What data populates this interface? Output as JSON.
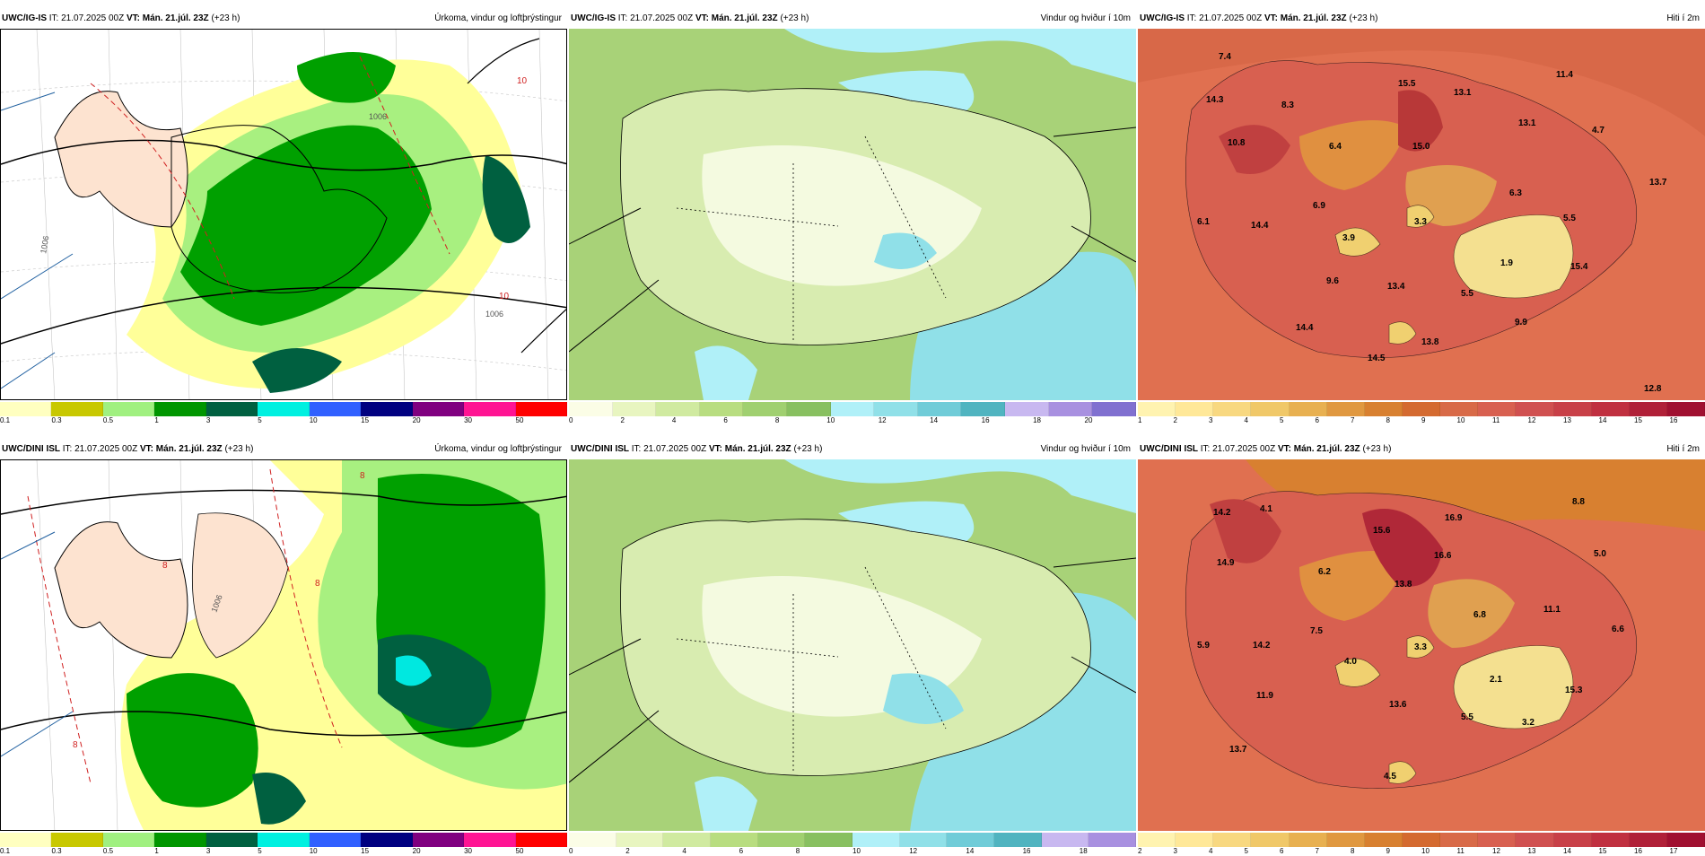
{
  "rows": [
    {
      "panels": [
        {
          "model": "UWC/IG-IS",
          "it_label": "IT:",
          "it_value": "21.07.2025 00Z",
          "vt_label": "VT:",
          "vt_value": "Mán. 21.júl. 23Z",
          "lead": "(+23 h)",
          "title": "Úrkoma, vindur og loftþrýstingur",
          "colorbar": [
            "#ffffc0",
            "#c8c800",
            "#a0f080",
            "#009600",
            "#006040",
            "#00f0e0",
            "#3060ff",
            "#000080",
            "#800080",
            "#ff1493",
            "#ff0000"
          ],
          "ticks": [
            "0.1",
            "0.3",
            "0.5",
            "1",
            "3",
            "5",
            "10",
            "15",
            "20",
            "30",
            "50"
          ],
          "labels": [
            {
              "text": "10"
            },
            {
              "text": "1006"
            },
            {
              "text": "1006"
            },
            {
              "text": "10"
            },
            {
              "text": "1006"
            }
          ]
        },
        {
          "model": "UWC/IG-IS",
          "it_label": "IT:",
          "it_value": "21.07.2025 00Z",
          "vt_label": "VT:",
          "vt_value": "Mán. 21.júl. 23Z",
          "lead": "(+23 h)",
          "title": "Vindur og hviður í 10m",
          "colorbar": [
            "#fbfde6",
            "#e8f5c0",
            "#d0eaa0",
            "#b8dd80",
            "#a0d070",
            "#88c060",
            "#b0f0f8",
            "#90e0e8",
            "#70ccd8",
            "#50b4c0",
            "#c8b8f0",
            "#a890e0",
            "#8070d0"
          ],
          "ticks": [
            "0",
            "2",
            "4",
            "6",
            "8",
            "10",
            "12",
            "14",
            "16",
            "18",
            "20"
          ],
          "labels": []
        },
        {
          "model": "UWC/IG-IS",
          "it_label": "IT:",
          "it_value": "21.07.2025 00Z",
          "vt_label": "VT:",
          "vt_value": "Mán. 21.júl. 23Z",
          "lead": "(+23 h)",
          "title": "Hiti í 2m",
          "colorbar": [
            "#fff3b0",
            "#ffe898",
            "#f8d880",
            "#f0c868",
            "#e8b050",
            "#e09840",
            "#d88030",
            "#d46a30",
            "#d86a48",
            "#d86050",
            "#d05050",
            "#c84048",
            "#c03040",
            "#b02038",
            "#a01030"
          ],
          "ticks": [
            "1",
            "2",
            "3",
            "4",
            "5",
            "6",
            "7",
            "8",
            "9",
            "10",
            "11",
            "12",
            "13",
            "14",
            "15",
            "16"
          ],
          "labels": [
            {
              "text": "7.4"
            },
            {
              "text": "15.5"
            },
            {
              "text": "11.4"
            },
            {
              "text": "14.3"
            },
            {
              "text": "8.3"
            },
            {
              "text": "13.1"
            },
            {
              "text": "13.1"
            },
            {
              "text": "10.8"
            },
            {
              "text": "6.4"
            },
            {
              "text": "15.0"
            },
            {
              "text": "4.7"
            },
            {
              "text": "13.7"
            },
            {
              "text": "6.3"
            },
            {
              "text": "6.9"
            },
            {
              "text": "5.5"
            },
            {
              "text": "6.1"
            },
            {
              "text": "14.4"
            },
            {
              "text": "3.9"
            },
            {
              "text": "3.3"
            },
            {
              "text": "1.9"
            },
            {
              "text": "15.4"
            },
            {
              "text": "9.6"
            },
            {
              "text": "13.4"
            },
            {
              "text": "5.5"
            },
            {
              "text": "9.9"
            },
            {
              "text": "14.4"
            },
            {
              "text": "13.8"
            },
            {
              "text": "14.5"
            },
            {
              "text": "12.8"
            }
          ]
        }
      ]
    },
    {
      "panels": [
        {
          "model": "UWC/DINI ISL",
          "it_label": "IT:",
          "it_value": "21.07.2025 00Z",
          "vt_label": "VT:",
          "vt_value": "Mán. 21.júl. 23Z",
          "lead": "(+23 h)",
          "title": "Úrkoma, vindur og loftþrýstingur",
          "colorbar": [
            "#ffffc0",
            "#c8c800",
            "#a0f080",
            "#009600",
            "#006040",
            "#00f0e0",
            "#3060ff",
            "#000080",
            "#800080",
            "#ff1493",
            "#ff0000"
          ],
          "ticks": [
            "0.1",
            "0.3",
            "0.5",
            "1",
            "3",
            "5",
            "10",
            "15",
            "20",
            "30",
            "50"
          ],
          "labels": [
            {
              "text": "8"
            },
            {
              "text": "8"
            },
            {
              "text": "8"
            },
            {
              "text": "1006"
            },
            {
              "text": "8"
            }
          ]
        },
        {
          "model": "UWC/DINI ISL",
          "it_label": "IT:",
          "it_value": "21.07.2025 00Z",
          "vt_label": "VT:",
          "vt_value": "Mán. 21.júl. 23Z",
          "lead": "(+23 h)",
          "title": "Vindur og hviður í 10m",
          "colorbar": [
            "#fbfde6",
            "#e8f5c0",
            "#d0eaa0",
            "#b8dd80",
            "#a0d070",
            "#88c060",
            "#b0f0f8",
            "#90e0e8",
            "#70ccd8",
            "#50b4c0",
            "#c8b8f0",
            "#a890e0"
          ],
          "ticks": [
            "0",
            "2",
            "4",
            "6",
            "8",
            "10",
            "12",
            "14",
            "16",
            "18"
          ],
          "labels": []
        },
        {
          "model": "UWC/DINI ISL",
          "it_label": "IT:",
          "it_value": "21.07.2025 00Z",
          "vt_label": "VT:",
          "vt_value": "Mán. 21.júl. 23Z",
          "lead": "(+23 h)",
          "title": "Hiti í 2m",
          "colorbar": [
            "#fff3b0",
            "#ffe898",
            "#f8d880",
            "#f0c868",
            "#e8b050",
            "#e09840",
            "#d88030",
            "#d46a30",
            "#d86a48",
            "#d86050",
            "#d05050",
            "#c84048",
            "#c03040",
            "#b02038",
            "#a01030"
          ],
          "ticks": [
            "2",
            "3",
            "4",
            "5",
            "6",
            "7",
            "8",
            "9",
            "10",
            "11",
            "12",
            "13",
            "14",
            "15",
            "16",
            "17"
          ],
          "labels": [
            {
              "text": "14.2"
            },
            {
              "text": "4.1"
            },
            {
              "text": "16.9"
            },
            {
              "text": "8.8"
            },
            {
              "text": "15.6"
            },
            {
              "text": "14.9"
            },
            {
              "text": "16.6"
            },
            {
              "text": "5.0"
            },
            {
              "text": "6.2"
            },
            {
              "text": "13.8"
            },
            {
              "text": "6.8"
            },
            {
              "text": "11.1"
            },
            {
              "text": "7.5"
            },
            {
              "text": "6.6"
            },
            {
              "text": "5.9"
            },
            {
              "text": "14.2"
            },
            {
              "text": "4.0"
            },
            {
              "text": "3.3"
            },
            {
              "text": "2.1"
            },
            {
              "text": "11.9"
            },
            {
              "text": "15.3"
            },
            {
              "text": "13.6"
            },
            {
              "text": "5.5"
            },
            {
              "text": "3.2"
            },
            {
              "text": "13.7"
            },
            {
              "text": "4.5"
            }
          ]
        }
      ]
    }
  ]
}
